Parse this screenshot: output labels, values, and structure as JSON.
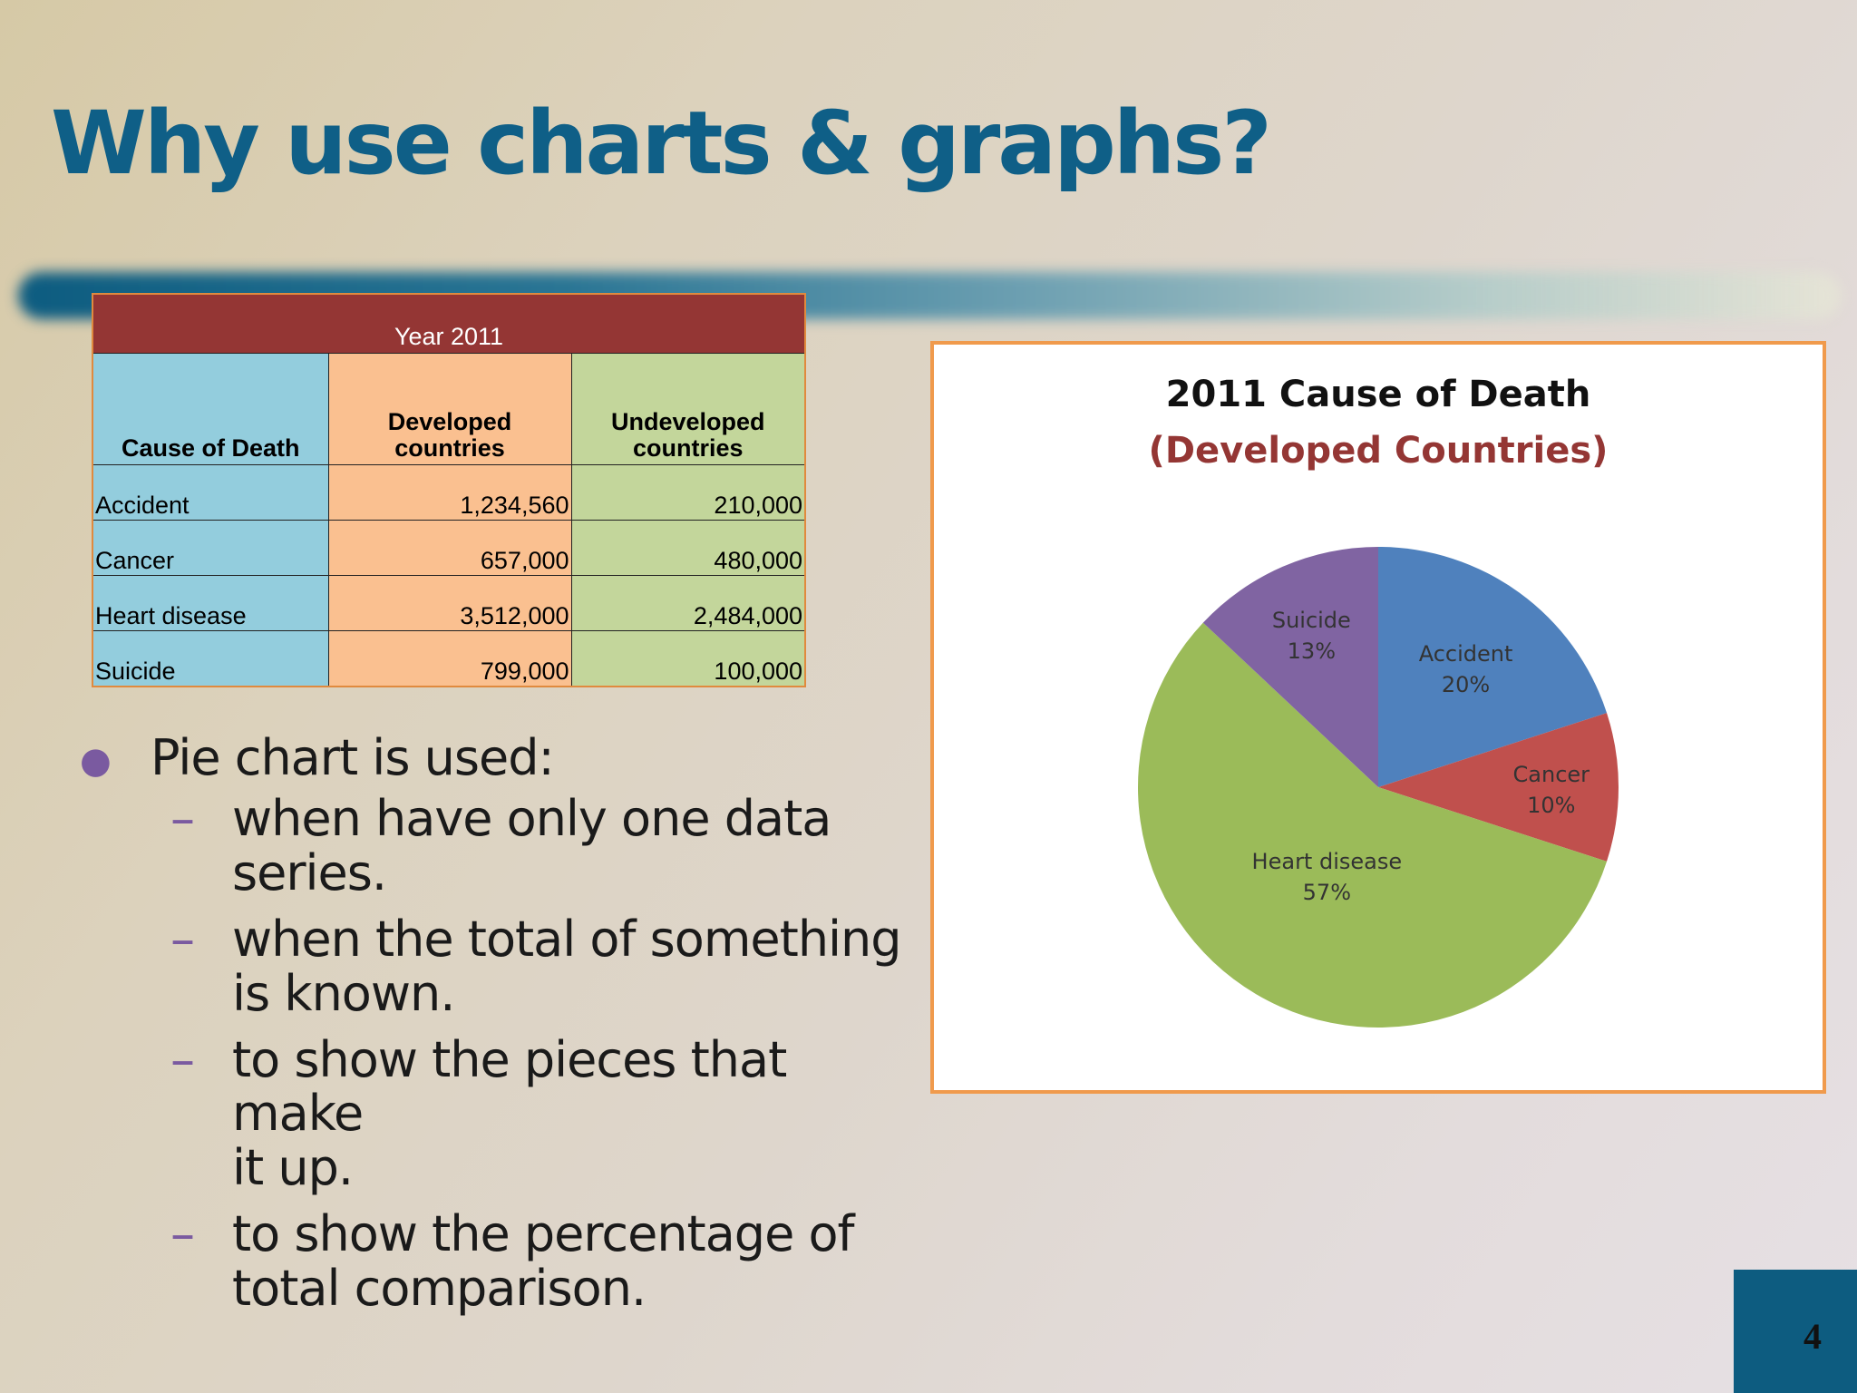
{
  "slide": {
    "title": "Why use charts & graphs?",
    "page_number": "4"
  },
  "table": {
    "caption": "Year 2011",
    "headers": [
      "Cause of Death",
      "Developed countries",
      "Undeveloped countries"
    ],
    "rows": [
      [
        "Accident",
        "1,234,560",
        "210,000"
      ],
      [
        "Cancer",
        "657,000",
        "480,000"
      ],
      [
        "Heart disease",
        "3,512,000",
        "2,484,000"
      ],
      [
        "Suicide",
        "799,000",
        "100,000"
      ]
    ]
  },
  "bullets": {
    "main": "Pie chart is used:",
    "sub": [
      [
        "when have only one data",
        "series."
      ],
      [
        "when the total of something",
        "is known."
      ],
      [
        "to show the pieces that make",
        "it up."
      ],
      [
        "to show the percentage of",
        "total comparison."
      ]
    ]
  },
  "colors": {
    "accent": "#0f5f87",
    "table_header": "#943634",
    "accident": "#4f81bd",
    "cancer": "#c0504d",
    "heart_disease": "#9bbb59",
    "suicide": "#8064a2"
  },
  "chart_data": {
    "type": "pie",
    "title": "2011 Cause of Death",
    "subtitle": "(Developed Countries)",
    "slices": [
      {
        "label": "Accident",
        "value": 20,
        "display": "20%",
        "color": "#4f81bd"
      },
      {
        "label": "Cancer",
        "value": 10,
        "display": "10%",
        "color": "#c0504d"
      },
      {
        "label": "Heart disease",
        "value": 57,
        "display": "57%",
        "color": "#9bbb59"
      },
      {
        "label": "Suicide",
        "value": 13,
        "display": "13%",
        "color": "#8064a2"
      }
    ],
    "legend": "none",
    "grid": false
  }
}
